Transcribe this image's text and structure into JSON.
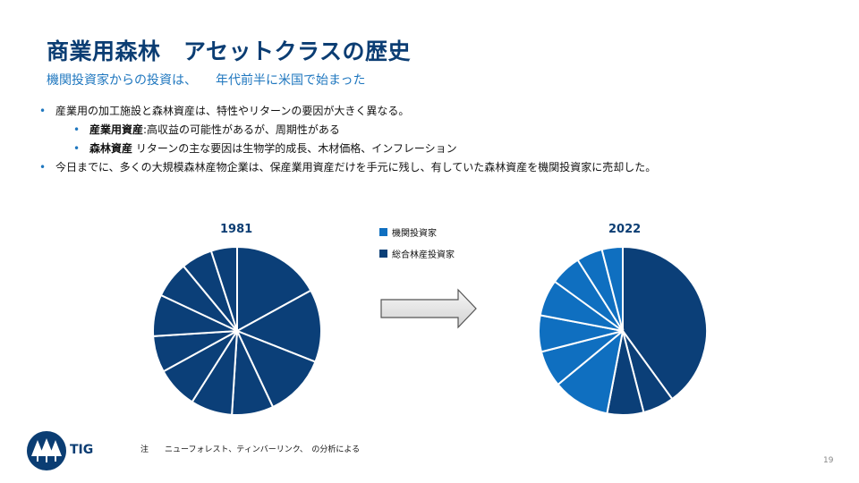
{
  "slide": {
    "title": "商業用森林　アセットクラスの歴史",
    "subtitle": "機関投資家からの投資は、　　年代前半に米国で始まった",
    "bullets": [
      {
        "text": "産業用の加工施設と森林資産は、特性やリターンの要因が大きく異なる。"
      },
      {
        "bold": "産業用資産",
        "text": ":高収益の可能性があるが、周期性がある"
      },
      {
        "bold": "森林資産",
        "text": " リターンの主な要因は生物学的成長、木材価格、インフレーション"
      },
      {
        "text": "今日までに、多くの大規模森林産物企業は、保産業用資産だけを手元に残し、有していた森林資産を機関投資家に売却した。"
      }
    ],
    "note": "注　　ニューフォレスト、ティンバーリンク、　の分析による",
    "page_number": "19",
    "logo_text": "TIG"
  },
  "colors": {
    "institutional": "#0f6fc0",
    "integrated": "#0b3f78",
    "title": "#0b3d73",
    "accent": "#1f77bf"
  },
  "chart_data": [
    {
      "type": "pie",
      "title": "1981",
      "legend": [
        "機関投資家",
        "総合林産投資家"
      ],
      "slices": [
        {
          "series": "総合林産投資家",
          "value": 17
        },
        {
          "series": "総合林産投資家",
          "value": 14
        },
        {
          "series": "総合林産投資家",
          "value": 12
        },
        {
          "series": "総合林産投資家",
          "value": 8
        },
        {
          "series": "総合林産投資家",
          "value": 8
        },
        {
          "series": "総合林産投資家",
          "value": 8
        },
        {
          "series": "総合林産投資家",
          "value": 7
        },
        {
          "series": "総合林産投資家",
          "value": 8
        },
        {
          "series": "総合林産投資家",
          "value": 7
        },
        {
          "series": "総合林産投資家",
          "value": 6
        },
        {
          "series": "総合林産投資家",
          "value": 5
        }
      ]
    },
    {
      "type": "pie",
      "title": "2022",
      "legend": [
        "機関投資家",
        "総合林産投資家"
      ],
      "slices": [
        {
          "series": "総合林産投資家",
          "value": 40
        },
        {
          "series": "総合林産投資家",
          "value": 6
        },
        {
          "series": "総合林産投資家",
          "value": 7
        },
        {
          "series": "機関投資家",
          "value": 11
        },
        {
          "series": "機関投資家",
          "value": 7
        },
        {
          "series": "機関投資家",
          "value": 7
        },
        {
          "series": "機関投資家",
          "value": 7
        },
        {
          "series": "機関投資家",
          "value": 6
        },
        {
          "series": "機関投資家",
          "value": 5
        },
        {
          "series": "機関投資家",
          "value": 4
        }
      ]
    }
  ]
}
